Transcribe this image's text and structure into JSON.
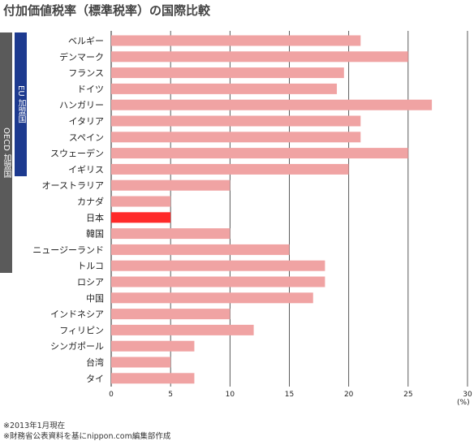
{
  "title": "付加価値税率（標準税率）の国際比較",
  "groups": {
    "oecd": "OECD 加盟国",
    "eu": "EU 加盟国"
  },
  "unit": "(%)",
  "notes": [
    "※2013年1月現在",
    "※財務省公表資料を基にnippon.com編集部作成"
  ],
  "colors": {
    "bar": "#f0a3a3",
    "highlight": "#ff2a2a",
    "oecd_band": "#5a5a5a",
    "eu_band": "#1d3a8f"
  },
  "chart_data": {
    "type": "bar",
    "orientation": "horizontal",
    "categories": [
      "ベルギー",
      "デンマーク",
      "フランス",
      "ドイツ",
      "ハンガリー",
      "イタリア",
      "スペイン",
      "スウェーデン",
      "イギリス",
      "オーストラリア",
      "カナダ",
      "日本",
      "韓国",
      "ニュージーランド",
      "トルコ",
      "ロシア",
      "中国",
      "インドネシア",
      "フィリピン",
      "シンガポール",
      "台湾",
      "タイ"
    ],
    "values": [
      21,
      25,
      19.6,
      19,
      27,
      21,
      21,
      25,
      20,
      10,
      5,
      5,
      10,
      15,
      18,
      18,
      17,
      10,
      12,
      7,
      5,
      7
    ],
    "highlight": "日本",
    "xlim": [
      0,
      30
    ],
    "xticks": [
      0,
      5,
      10,
      15,
      20,
      25,
      30
    ],
    "grid": true
  }
}
